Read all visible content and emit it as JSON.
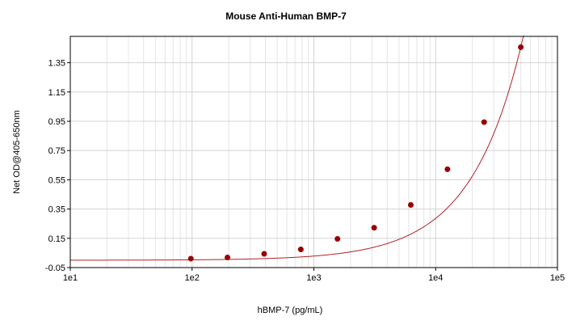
{
  "chart_data": {
    "type": "scatter",
    "title": "Mouse Anti-Human BMP-7",
    "xlabel": "hBMP-7 (pg/mL)",
    "ylabel": "Net OD@405-650nm",
    "x_scale": "log",
    "xlim": [
      10,
      100000
    ],
    "ylim": [
      -0.05,
      1.53
    ],
    "x_tick_labels": [
      "1e1",
      "1e2",
      "1e3",
      "1e4",
      "1e5"
    ],
    "x_tick_values": [
      10,
      100,
      1000,
      10000,
      100000
    ],
    "y_ticks": [
      -0.05,
      0.15,
      0.35,
      0.55,
      0.75,
      0.95,
      1.15,
      1.35
    ],
    "y_tick_labels": [
      "-0.05",
      "0.15",
      "0.35",
      "0.55",
      "0.75",
      "0.95",
      "1.15",
      "1.35"
    ],
    "grid": true,
    "series": [
      {
        "points": [
          {
            "x": 97.7,
            "y": 0.011
          },
          {
            "x": 195.3,
            "y": 0.019
          },
          {
            "x": 390.6,
            "y": 0.044
          },
          {
            "x": 781.3,
            "y": 0.074
          },
          {
            "x": 1562.5,
            "y": 0.146
          },
          {
            "x": 3125,
            "y": 0.222
          },
          {
            "x": 6250,
            "y": 0.378
          },
          {
            "x": 12500,
            "y": 0.622
          },
          {
            "x": 25000,
            "y": 0.944
          },
          {
            "x": 50000,
            "y": 1.456
          }
        ],
        "fit_curve": "quadratic in x",
        "fit_coefficients": {
          "a": 0.0001633,
          "b": 2.848e-05,
          "c": 1.343e-11
        }
      }
    ],
    "colors": {
      "points": "#990000",
      "curve": "#b22222",
      "grid": "#d3d3d3",
      "minor_grid": "#e4e4e4",
      "frame": "#000000"
    }
  }
}
